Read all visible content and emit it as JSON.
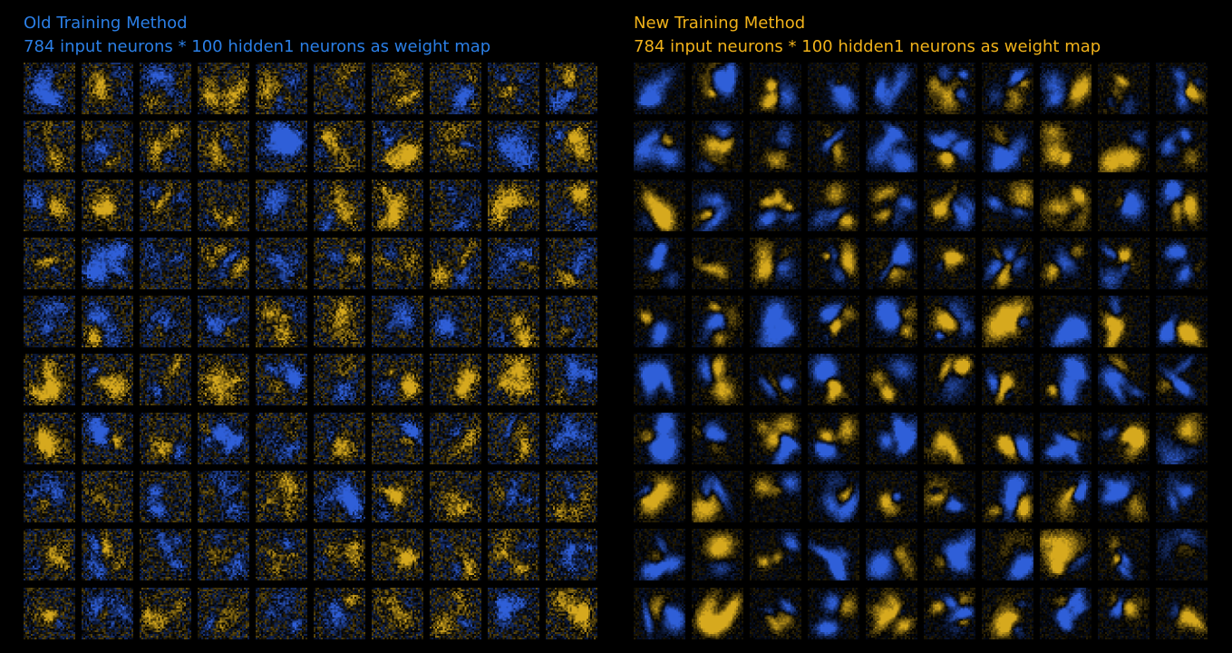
{
  "colors": {
    "background": "#000000",
    "positive_weight": "#d6a91e",
    "negative_weight": "#2f5fd8",
    "left_title": "#2b7fe6",
    "right_title": "#f0b21a"
  },
  "panels": [
    {
      "title": "Old Training Method",
      "subtitle": "784 input neurons * 100 hidden1 neurons as weight map",
      "grid": {
        "rows": 10,
        "cols": 10,
        "tile_pixels": 28
      }
    },
    {
      "title": "New Training Method",
      "subtitle": "784 input neurons * 100 hidden1 neurons as weight map",
      "grid": {
        "rows": 10,
        "cols": 10,
        "tile_pixels": 28
      }
    }
  ]
}
